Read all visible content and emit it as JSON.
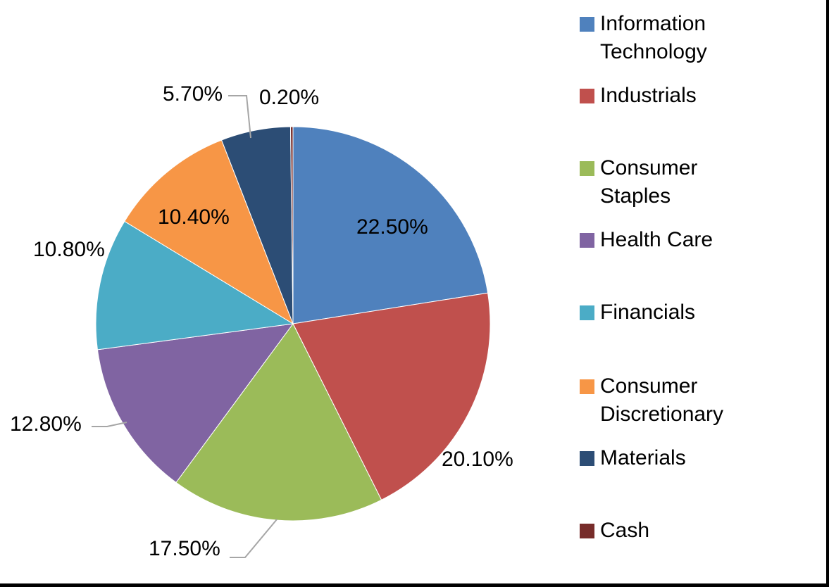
{
  "chart_data": {
    "type": "pie",
    "title": "",
    "start_angle_deg": 0,
    "direction": "clockwise",
    "legend_position": "right",
    "categories": [
      "Information Technology",
      "Industrials",
      "Consumer Staples",
      "Health Care",
      "Financials",
      "Consumer Discretionary",
      "Materials",
      "Cash"
    ],
    "values": [
      22.5,
      20.1,
      17.5,
      12.8,
      10.8,
      10.4,
      5.7,
      0.2
    ],
    "labels": [
      "22.50%",
      "20.10%",
      "17.50%",
      "12.80%",
      "10.80%",
      "10.40%",
      "5.70%",
      "0.20%"
    ],
    "colors": [
      "#4F81BD",
      "#C0504D",
      "#9BBB59",
      "#8064A2",
      "#4BACC6",
      "#F79646",
      "#2C4D75",
      "#772C2A"
    ]
  },
  "legend": {
    "items": [
      {
        "label": "Information Technology",
        "color": "#4F81BD"
      },
      {
        "label": "Industrials",
        "color": "#C0504D"
      },
      {
        "label": "Consumer Staples",
        "color": "#9BBB59"
      },
      {
        "label": "Health Care",
        "color": "#8064A2"
      },
      {
        "label": "Financials",
        "color": "#4BACC6"
      },
      {
        "label": "Consumer Discretionary",
        "color": "#F79646"
      },
      {
        "label": "Materials",
        "color": "#2C4D75"
      },
      {
        "label": "Cash",
        "color": "#772C2A"
      }
    ]
  }
}
